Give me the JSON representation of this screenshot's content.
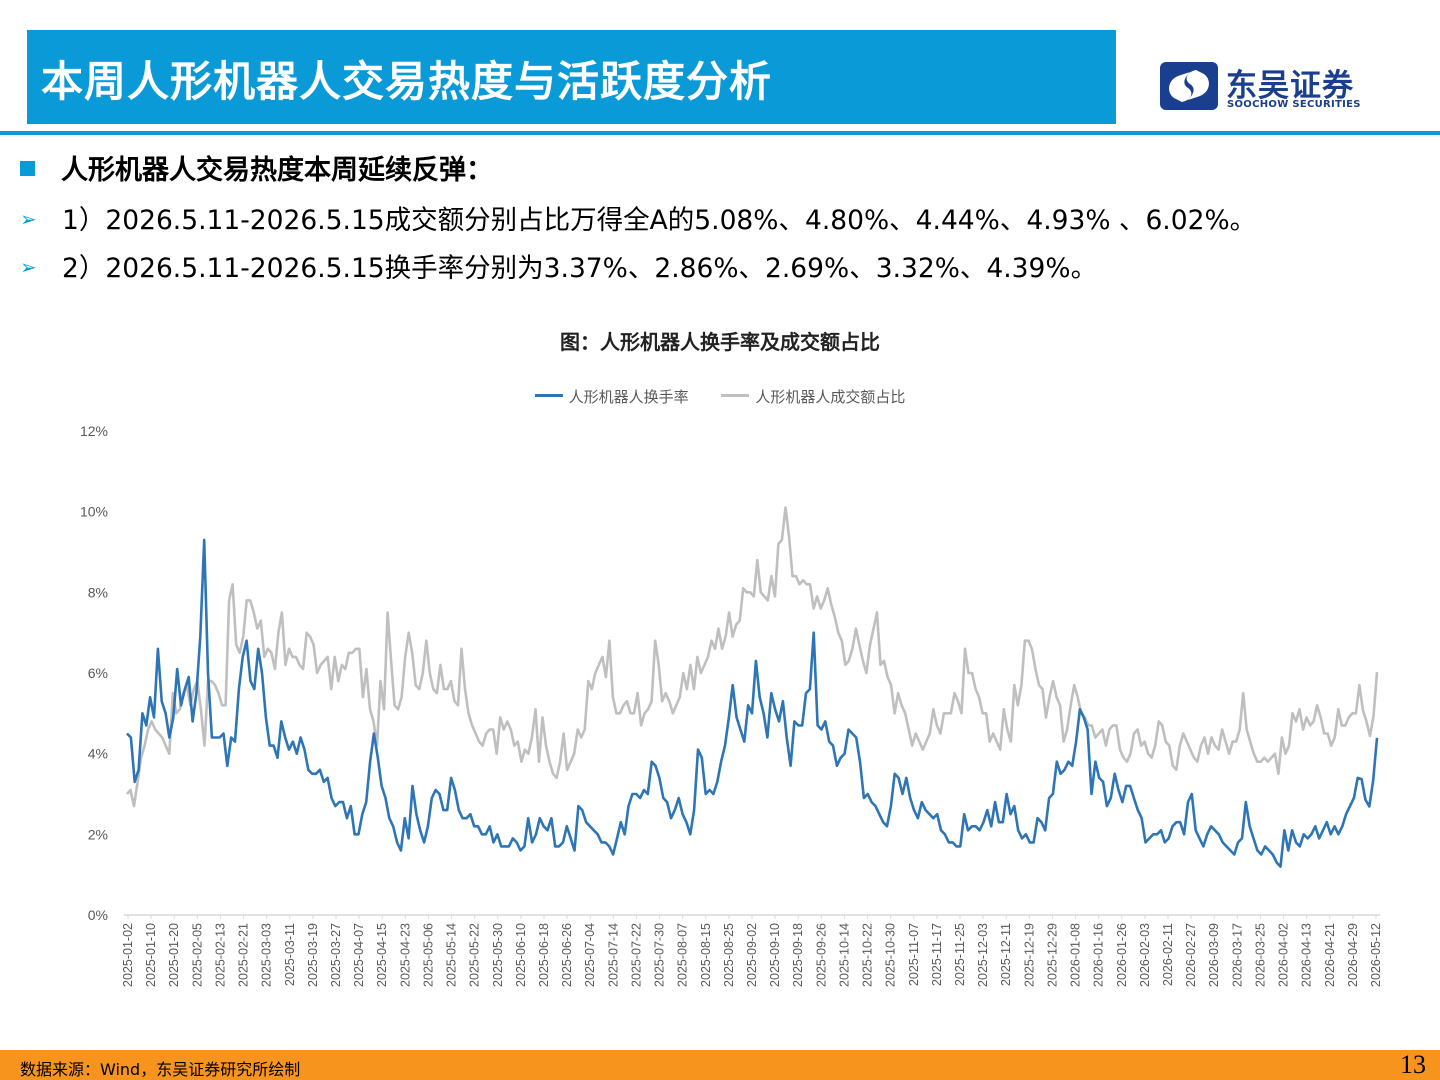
{
  "header": {
    "title": "本周人形机器人交易热度与活跃度分析",
    "logo_cn": "东吴证券",
    "logo_en": "SOOCHOW SECURITIES"
  },
  "bullets": {
    "main": "人形机器人交易热度本周延续反弹：",
    "sub1": "1）2026.5.11-2026.5.15成交额分别占比万得全A的5.08%、4.80%、4.44%、4.93% 、6.02%。",
    "sub2": "2）2026.5.11-2026.5.15换手率分别为3.37%、2.86%、2.69%、3.32%、4.39%。"
  },
  "colors": {
    "accent": "#0b9ad8",
    "footer": "#f7941d",
    "turnover": "#2e75b6",
    "share": "#bfbfbf"
  },
  "footer": {
    "source": "数据来源：Wind，东吴证券研究所绘制",
    "page": "13"
  },
  "chart_data": {
    "type": "line",
    "title": "图：人形机器人换手率及成交额占比",
    "xlabel": "",
    "ylabel": "",
    "ylim": [
      0,
      12
    ],
    "yticks": [
      "0%",
      "2%",
      "4%",
      "6%",
      "8%",
      "10%",
      "12%"
    ],
    "grid": false,
    "legend": "top",
    "x_ticks": [
      "2025-01-02",
      "2025-01-10",
      "2025-01-20",
      "2025-02-05",
      "2025-02-13",
      "2025-02-21",
      "2025-03-03",
      "2025-03-11",
      "2025-03-19",
      "2025-03-27",
      "2025-04-07",
      "2025-04-15",
      "2025-04-23",
      "2025-05-06",
      "2025-05-14",
      "2025-05-22",
      "2025-05-30",
      "2025-06-10",
      "2025-06-18",
      "2025-06-26",
      "2025-07-04",
      "2025-07-14",
      "2025-07-22",
      "2025-07-30",
      "2025-08-07",
      "2025-08-15",
      "2025-08-25",
      "2025-09-02",
      "2025-09-10",
      "2025-09-18",
      "2025-09-26",
      "2025-10-14",
      "2025-10-22",
      "2025-10-30",
      "2025-11-07",
      "2025-11-17",
      "2025-11-25",
      "2025-12-03",
      "2025-12-11",
      "2025-12-19",
      "2025-12-29",
      "2026-01-08",
      "2026-01-16",
      "2026-01-26",
      "2026-02-03",
      "2026-02-11",
      "2026-02-27",
      "2026-03-09",
      "2026-03-17",
      "2026-03-25",
      "2026-04-02",
      "2026-04-13",
      "2026-04-21",
      "2026-04-29",
      "2026-05-12"
    ],
    "series": [
      {
        "name": "人形机器人换手率",
        "values": [
          4.5,
          4.4,
          3.3,
          3.6,
          5.0,
          4.7,
          5.4,
          4.9,
          6.6,
          5.3,
          5.0,
          4.4,
          4.9,
          6.1,
          5.2,
          5.6,
          5.9,
          4.8,
          5.5,
          6.9,
          9.3,
          6.0,
          4.4,
          4.4,
          4.4,
          4.5,
          3.7,
          4.4,
          4.3,
          5.6,
          6.4,
          6.8,
          5.8,
          5.6,
          6.6,
          6.0,
          4.9,
          4.2,
          4.2,
          3.9,
          4.8,
          4.4,
          4.1,
          4.3,
          4.0,
          4.4,
          4.1,
          3.6,
          3.5,
          3.5,
          3.6,
          3.3,
          3.4,
          2.9,
          2.7,
          2.8,
          2.8,
          2.4,
          2.7,
          2.0,
          2.0,
          2.5,
          2.8,
          3.8,
          4.5,
          3.9,
          3.2,
          2.9,
          2.4,
          2.2,
          1.8,
          1.6,
          2.4,
          1.9,
          3.2,
          2.5,
          2.1,
          1.8,
          2.2,
          2.9,
          3.1,
          3.0,
          2.6,
          2.6,
          3.4,
          3.1,
          2.6,
          2.4,
          2.4,
          2.5,
          2.2,
          2.2,
          2.0,
          2.0,
          2.2,
          1.8,
          2.0,
          1.7,
          1.7,
          1.7,
          1.9,
          1.8,
          1.6,
          1.7,
          2.4,
          1.8,
          2.0,
          2.4,
          2.2,
          2.1,
          2.4,
          1.7,
          1.7,
          1.8,
          2.2,
          1.9,
          1.6,
          2.7,
          2.6,
          2.3,
          2.2,
          2.1,
          2.0,
          1.8,
          1.8,
          1.7,
          1.5,
          1.9,
          2.3,
          2.0,
          2.7,
          3.0,
          3.0,
          2.9,
          3.1,
          3.0,
          3.8,
          3.7,
          3.4,
          2.9,
          2.8,
          2.4,
          2.6,
          2.9,
          2.5,
          2.3,
          2.0,
          2.6,
          4.1,
          3.9,
          3.0,
          3.1,
          3.0,
          3.3,
          3.8,
          4.2,
          4.9,
          5.7,
          4.9,
          4.6,
          4.3,
          5.2,
          5.0,
          6.3,
          5.4,
          5.0,
          4.4,
          5.5,
          5.1,
          4.8,
          5.3,
          4.4,
          3.7,
          4.8,
          4.7,
          4.7,
          5.5,
          5.6,
          7.0,
          4.7,
          4.6,
          4.8,
          4.3,
          4.2,
          3.7,
          3.9,
          4.0,
          4.6,
          4.5,
          4.4,
          3.8,
          2.9,
          3.0,
          2.8,
          2.7,
          2.5,
          2.3,
          2.2,
          2.7,
          3.5,
          3.4,
          3.0,
          3.4,
          2.9,
          2.6,
          2.4,
          2.8,
          2.6,
          2.5,
          2.4,
          2.5,
          2.1,
          2.0,
          1.8,
          1.8,
          1.7,
          1.7,
          2.5,
          2.1,
          2.2,
          2.2,
          2.1,
          2.3,
          2.6,
          2.2,
          2.8,
          2.3,
          2.3,
          3.0,
          2.5,
          2.7,
          2.1,
          1.9,
          2.0,
          1.8,
          1.8,
          2.4,
          2.3,
          2.1,
          2.9,
          3.0,
          3.8,
          3.5,
          3.6,
          3.8,
          3.7,
          4.3,
          5.1,
          4.9,
          4.6,
          3.0,
          3.8,
          3.4,
          3.3,
          2.7,
          2.9,
          3.5,
          3.1,
          2.8,
          3.2,
          3.2,
          2.9,
          2.6,
          2.4,
          1.8,
          1.9,
          2.0,
          2.0,
          2.1,
          1.8,
          1.9,
          2.2,
          2.3,
          2.3,
          2.0,
          2.8,
          3.0,
          2.1,
          1.9,
          1.7,
          2.0,
          2.2,
          2.1,
          2.0,
          1.8,
          1.7,
          1.6,
          1.5,
          1.8,
          1.9,
          2.8,
          2.2,
          1.9,
          1.6,
          1.5,
          1.7,
          1.6,
          1.5,
          1.3,
          1.2,
          2.1,
          1.6,
          2.1,
          1.8,
          1.7,
          2.0,
          1.9,
          2.0,
          2.2,
          1.9,
          2.1,
          2.3,
          2.0,
          2.2,
          2.0,
          2.2,
          2.5,
          2.7,
          2.9,
          3.4,
          3.37,
          2.86,
          2.69,
          3.32,
          4.39
        ]
      },
      {
        "name": "人形机器人成交额占比",
        "values": [
          3.0,
          3.1,
          2.7,
          3.3,
          3.9,
          4.2,
          4.6,
          4.8,
          4.6,
          4.5,
          4.4,
          4.2,
          4.0,
          5.5,
          5.0,
          5.1,
          5.5,
          5.7,
          5.2,
          5.6,
          5.8,
          5.1,
          4.2,
          5.8,
          5.8,
          5.7,
          5.5,
          5.2,
          5.2,
          7.8,
          8.2,
          6.7,
          6.5,
          6.9,
          7.8,
          7.8,
          7.5,
          7.1,
          7.3,
          6.4,
          6.6,
          6.5,
          6.1,
          7.0,
          7.5,
          6.2,
          6.6,
          6.4,
          6.4,
          6.2,
          6.1,
          7.0,
          6.9,
          6.7,
          6.0,
          6.2,
          6.3,
          6.4,
          5.6,
          6.4,
          5.8,
          6.2,
          6.1,
          6.5,
          6.5,
          6.6,
          6.6,
          5.4,
          6.1,
          5.1,
          4.8,
          4.2,
          5.8,
          5.1,
          7.5,
          6.3,
          5.2,
          5.1,
          5.4,
          6.4,
          7.0,
          6.5,
          5.7,
          5.6,
          6.0,
          6.8,
          6.0,
          5.6,
          5.5,
          6.2,
          5.6,
          5.6,
          5.8,
          5.3,
          5.2,
          6.6,
          5.6,
          5.0,
          4.7,
          4.5,
          4.3,
          4.2,
          4.5,
          4.6,
          4.6,
          4.0,
          4.9,
          4.6,
          4.8,
          4.6,
          4.2,
          4.3,
          3.8,
          4.1,
          4.0,
          4.4,
          5.1,
          3.8,
          4.9,
          4.2,
          3.8,
          3.5,
          3.4,
          3.8,
          4.5,
          3.6,
          3.8,
          4.0,
          4.6,
          4.4,
          4.6,
          5.8,
          5.6,
          6.0,
          6.2,
          6.4,
          5.9,
          6.8,
          5.4,
          5.0,
          5.0,
          5.2,
          5.3,
          5.0,
          5.0,
          5.5,
          4.7,
          5.0,
          5.1,
          5.3,
          6.8,
          6.2,
          5.3,
          5.5,
          5.3,
          5.0,
          5.2,
          5.4,
          6.0,
          5.6,
          6.2,
          5.6,
          6.4,
          6.0,
          6.2,
          6.4,
          6.8,
          6.6,
          7.1,
          6.6,
          6.9,
          7.5,
          6.9,
          7.2,
          7.3,
          8.1,
          8.0,
          8.0,
          7.9,
          8.8,
          8.0,
          7.9,
          7.8,
          8.4,
          7.9,
          9.2,
          9.3,
          10.1,
          9.4,
          8.4,
          8.4,
          8.2,
          8.3,
          8.2,
          8.2,
          7.6,
          7.9,
          7.6,
          7.8,
          8.1,
          7.7,
          7.4,
          7.0,
          6.8,
          6.2,
          6.3,
          6.6,
          7.1,
          6.7,
          6.3,
          6.0,
          6.7,
          7.1,
          7.5,
          6.2,
          6.3,
          5.9,
          5.7,
          5.0,
          5.5,
          5.2,
          5.0,
          4.6,
          4.2,
          4.5,
          4.3,
          4.1,
          4.3,
          4.5,
          5.1,
          4.7,
          4.5,
          5.0,
          5.0,
          5.0,
          5.5,
          5.3,
          5.0,
          6.6,
          6.0,
          6.0,
          5.6,
          5.4,
          5.0,
          5.0,
          4.3,
          4.5,
          4.3,
          4.1,
          5.1,
          4.6,
          4.3,
          5.7,
          5.2,
          5.7,
          6.8,
          6.8,
          6.6,
          6.1,
          5.7,
          5.6,
          4.9,
          5.4,
          5.8,
          5.4,
          5.2,
          4.3,
          4.6,
          5.2,
          5.7,
          5.4,
          5.0,
          4.9,
          4.7,
          4.7,
          4.4,
          4.5,
          4.6,
          4.2,
          4.6,
          4.7,
          4.7,
          4.1,
          3.9,
          3.8,
          4.0,
          4.5,
          4.6,
          4.2,
          4.3,
          4.0,
          3.9,
          4.2,
          4.8,
          4.7,
          4.3,
          4.2,
          3.7,
          3.6,
          4.2,
          4.5,
          4.3,
          4.1,
          3.9,
          3.8,
          4.2,
          4.4,
          4.0,
          4.4,
          4.2,
          4.1,
          4.6,
          4.3,
          4.0,
          4.3,
          4.3,
          4.6,
          5.5,
          4.6,
          4.3,
          4.0,
          3.8,
          3.8,
          3.9,
          3.8,
          3.9,
          4.0,
          3.5,
          4.4,
          4.0,
          4.2,
          5.0,
          4.8,
          5.1,
          4.6,
          4.9,
          4.7,
          4.8,
          5.2,
          4.9,
          4.5,
          4.5,
          4.2,
          4.4,
          5.1,
          4.7,
          4.7,
          4.9,
          5.0,
          5.0,
          5.7,
          5.08,
          4.8,
          4.44,
          4.93,
          6.02
        ]
      }
    ]
  }
}
